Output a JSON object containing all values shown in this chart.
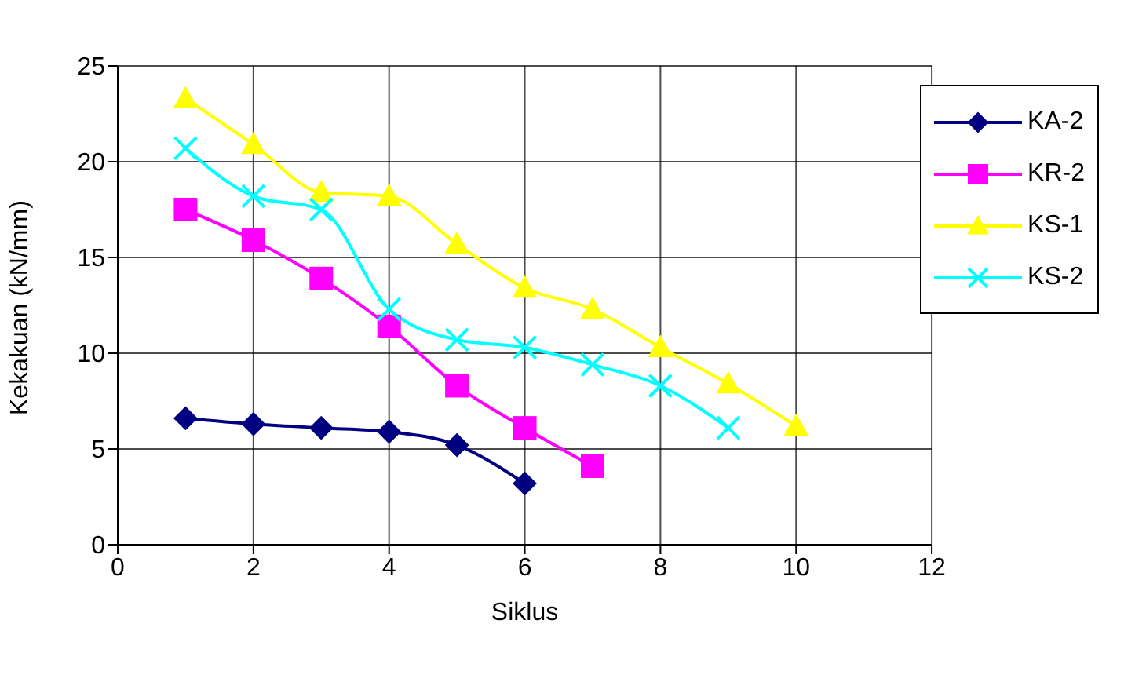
{
  "chart_data": {
    "type": "line",
    "xlabel": "Siklus",
    "ylabel": "Kekakuan (kN/mm)",
    "xlim": [
      0,
      12
    ],
    "xticks": [
      0,
      2,
      4,
      6,
      8,
      10,
      12
    ],
    "ylim": [
      0,
      25
    ],
    "yticks": [
      0,
      5,
      10,
      15,
      20,
      25
    ],
    "grid": true,
    "legend": "top right",
    "x": [
      1,
      2,
      3,
      4,
      5,
      6,
      7,
      8,
      9,
      10
    ],
    "series": [
      {
        "name": "KA-2",
        "color": "#000080",
        "marker": "diamond",
        "values": [
          6.6,
          6.3,
          6.1,
          5.9,
          5.2,
          3.2,
          null,
          null,
          null,
          null
        ]
      },
      {
        "name": "KR-2",
        "color": "#ff00ff",
        "marker": "square",
        "values": [
          17.5,
          15.9,
          13.9,
          11.4,
          8.3,
          6.1,
          4.1,
          null,
          null,
          null
        ]
      },
      {
        "name": "KS-1",
        "color": "#ffff00",
        "marker": "triangle",
        "values": [
          23.3,
          20.9,
          18.4,
          18.2,
          15.7,
          13.4,
          12.3,
          10.3,
          8.4,
          6.2
        ]
      },
      {
        "name": "KS-2",
        "color": "#00ffff",
        "marker": "cross",
        "values": [
          20.7,
          18.2,
          17.5,
          12.3,
          10.7,
          10.3,
          9.4,
          8.3,
          6.1,
          null
        ]
      }
    ]
  }
}
